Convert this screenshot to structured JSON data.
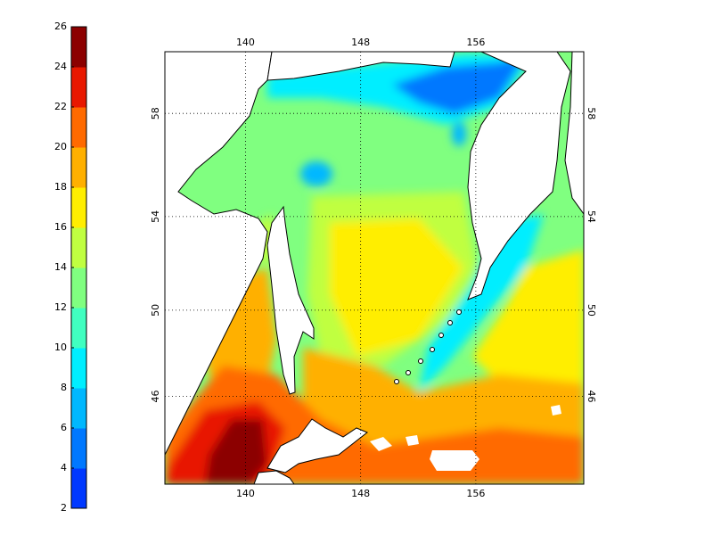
{
  "colorbar": {
    "range": [
      2,
      26
    ],
    "ticks": [
      2,
      4,
      6,
      8,
      10,
      12,
      14,
      16,
      18,
      20,
      22,
      24,
      26
    ],
    "colors": [
      "#0038ff",
      "#0078ff",
      "#00b8ff",
      "#00eeff",
      "#40ffc0",
      "#80ff80",
      "#c0ff40",
      "#ffee00",
      "#ffb000",
      "#ff6a00",
      "#e81800",
      "#8c0000"
    ]
  },
  "map": {
    "lon_range": [
      134.4,
      163.5
    ],
    "lat_range": [
      41.6,
      60.2
    ],
    "lon_ticks": [
      140,
      148,
      156
    ],
    "lat_ticks": [
      46,
      50,
      54,
      58
    ]
  }
}
